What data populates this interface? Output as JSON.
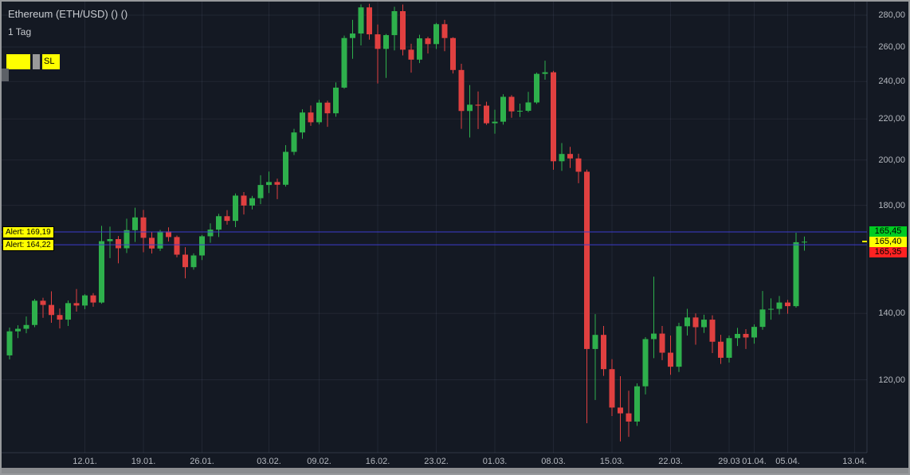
{
  "header": {
    "title": "Ethereum (ETH/USD) () ()",
    "interval": "1 Tag"
  },
  "legend": {
    "sl_label": "SL"
  },
  "alerts": [
    {
      "label": "Alert: 169,19",
      "price": 169.19
    },
    {
      "label": "Alert: 164,22",
      "price": 164.22
    }
  ],
  "alert_style": {
    "line_color": "#3c3ccc",
    "label_bg": "#ffff00",
    "label_fg": "#000000"
  },
  "price_badges": [
    {
      "name": "ask",
      "value": "165,45",
      "price": 165.45,
      "bg": "#00cc22",
      "fg": "#000000"
    },
    {
      "name": "last",
      "value": "165,40",
      "price": 165.4,
      "bg": "#ffff00",
      "fg": "#000000"
    },
    {
      "name": "bid",
      "value": "165,35",
      "price": 165.35,
      "bg": "#ff2222",
      "fg": "#000000"
    }
  ],
  "chart_data": {
    "type": "candlestick",
    "title": "Ethereum (ETH/USD)",
    "interval": "1 Tag",
    "scale": "logarithmic",
    "colors": {
      "up": "#2eb04c",
      "down": "#e04040",
      "grid": "rgba(120,135,160,0.13)",
      "axis_line": "rgba(120,135,160,0.28)",
      "background": "#141923"
    },
    "last_price": 165.4,
    "price_axis": {
      "side": "right",
      "ticks": [
        {
          "value": 280,
          "label": "280,00"
        },
        {
          "value": 260,
          "label": "260,00"
        },
        {
          "value": 240,
          "label": "240,00"
        },
        {
          "value": 220,
          "label": "220,00"
        },
        {
          "value": 200,
          "label": "200,00"
        },
        {
          "value": 180,
          "label": "180,00"
        },
        {
          "value": 140,
          "label": "140,00"
        },
        {
          "value": 120,
          "label": "120,00"
        }
      ]
    },
    "time_axis": {
      "ticks": [
        {
          "label": "12.01.",
          "candle_index": 9
        },
        {
          "label": "19.01.",
          "candle_index": 16
        },
        {
          "label": "26.01.",
          "candle_index": 23
        },
        {
          "label": "03.02.",
          "candle_index": 31
        },
        {
          "label": "09.02.",
          "candle_index": 37
        },
        {
          "label": "16.02.",
          "candle_index": 44
        },
        {
          "label": "23.02.",
          "candle_index": 51
        },
        {
          "label": "01.03.",
          "candle_index": 58
        },
        {
          "label": "08.03.",
          "candle_index": 65
        },
        {
          "label": "15.03.",
          "candle_index": 72
        },
        {
          "label": "22.03.",
          "candle_index": 79
        },
        {
          "label": "29.03",
          "candle_index": 86
        },
        {
          "label": "01.04.",
          "candle_index": 89
        },
        {
          "label": "05.04.",
          "candle_index": 93
        },
        {
          "label": "13.04.",
          "candle_index": 101
        }
      ]
    },
    "candle_format": [
      "date",
      "open",
      "high",
      "low",
      "close"
    ],
    "candles": [
      [
        "03.01",
        127.0,
        135.5,
        125.8,
        134.3
      ],
      [
        "04.01",
        134.3,
        136.2,
        132.2,
        135.1
      ],
      [
        "05.01",
        135.1,
        139.0,
        133.7,
        136.3
      ],
      [
        "06.01",
        136.3,
        144.8,
        135.6,
        144.2
      ],
      [
        "07.01",
        144.2,
        145.2,
        138.6,
        142.8
      ],
      [
        "08.01",
        142.8,
        147.4,
        137.0,
        139.5
      ],
      [
        "09.01",
        139.5,
        141.6,
        135.2,
        138.0
      ],
      [
        "10.01",
        138.0,
        144.3,
        136.0,
        143.4
      ],
      [
        "11.01",
        143.4,
        148.2,
        140.6,
        142.6
      ],
      [
        "12.01",
        142.6,
        146.4,
        141.4,
        146.0
      ],
      [
        "13.01",
        146.0,
        146.8,
        142.2,
        143.6
      ],
      [
        "14.01",
        143.6,
        171.6,
        143.2,
        165.6
      ],
      [
        "15.01",
        165.6,
        171.3,
        159.2,
        166.4
      ],
      [
        "16.01",
        166.4,
        167.6,
        157.3,
        162.9
      ],
      [
        "17.01",
        162.9,
        174.5,
        161.1,
        169.9
      ],
      [
        "18.01",
        169.9,
        179.0,
        165.3,
        175.0
      ],
      [
        "19.01",
        175.0,
        178.1,
        161.4,
        166.9
      ],
      [
        "20.01",
        166.9,
        169.3,
        160.9,
        162.8
      ],
      [
        "21.01",
        162.8,
        170.0,
        161.9,
        169.4
      ],
      [
        "22.01",
        169.4,
        171.0,
        165.5,
        167.2
      ],
      [
        "23.01",
        167.2,
        167.8,
        159.5,
        160.5
      ],
      [
        "24.01",
        160.5,
        163.3,
        151.9,
        155.9
      ],
      [
        "25.01",
        155.9,
        161.0,
        155.0,
        160.2
      ],
      [
        "26.01",
        160.2,
        168.0,
        158.5,
        167.5
      ],
      [
        "27.01",
        167.5,
        172.6,
        165.0,
        170.1
      ],
      [
        "28.01",
        170.1,
        176.5,
        167.2,
        175.5
      ],
      [
        "29.01",
        175.5,
        178.0,
        172.1,
        173.6
      ],
      [
        "30.01",
        173.6,
        185.0,
        171.1,
        184.1
      ],
      [
        "31.01",
        184.1,
        185.6,
        176.2,
        179.9
      ],
      [
        "01.02",
        179.9,
        184.0,
        178.3,
        183.0
      ],
      [
        "02.02",
        183.0,
        193.0,
        180.5,
        188.7
      ],
      [
        "03.02",
        188.7,
        194.7,
        185.2,
        190.0
      ],
      [
        "04.02",
        190.0,
        191.5,
        182.6,
        188.8
      ],
      [
        "05.02",
        188.8,
        207.0,
        188.0,
        203.8
      ],
      [
        "06.02",
        203.8,
        215.0,
        202.3,
        213.2
      ],
      [
        "07.02",
        213.2,
        225.0,
        210.1,
        223.3
      ],
      [
        "08.02",
        223.3,
        227.0,
        216.5,
        218.3
      ],
      [
        "09.02",
        218.3,
        230.0,
        217.2,
        228.5
      ],
      [
        "10.02",
        228.5,
        229.5,
        216.0,
        222.9
      ],
      [
        "11.02",
        222.9,
        239.5,
        221.1,
        236.6
      ],
      [
        "12.02",
        236.6,
        267.0,
        236.0,
        265.5
      ],
      [
        "13.02",
        265.5,
        277.0,
        253.0,
        268.3
      ],
      [
        "14.02",
        268.3,
        287.1,
        261.0,
        285.1
      ],
      [
        "15.02",
        285.1,
        287.5,
        264.5,
        267.8
      ],
      [
        "16.02",
        267.8,
        274.0,
        238.9,
        258.9
      ],
      [
        "17.02",
        258.9,
        268.0,
        242.0,
        267.3
      ],
      [
        "18.02",
        267.3,
        285.5,
        258.0,
        282.6
      ],
      [
        "19.02",
        282.6,
        287.0,
        255.0,
        258.4
      ],
      [
        "20.02",
        258.4,
        262.0,
        245.0,
        252.5
      ],
      [
        "21.02",
        252.5,
        267.5,
        250.5,
        265.3
      ],
      [
        "22.02",
        265.3,
        266.3,
        256.1,
        261.8
      ],
      [
        "23.02",
        261.8,
        275.0,
        258.8,
        274.2
      ],
      [
        "24.02",
        274.2,
        277.0,
        257.5,
        265.5
      ],
      [
        "25.02",
        265.5,
        266.0,
        244.5,
        246.5
      ],
      [
        "26.02",
        246.5,
        250.1,
        215.0,
        224.1
      ],
      [
        "27.02",
        224.1,
        238.0,
        210.7,
        227.4
      ],
      [
        "28.02",
        227.4,
        234.5,
        214.9,
        226.9
      ],
      [
        "29.02",
        226.9,
        229.0,
        217.0,
        217.8
      ],
      [
        "01.03",
        217.8,
        224.8,
        212.6,
        218.6
      ],
      [
        "02.03",
        218.6,
        233.0,
        217.1,
        231.6
      ],
      [
        "03.03",
        231.6,
        232.5,
        220.6,
        223.9
      ],
      [
        "04.03",
        223.9,
        228.0,
        221.0,
        224.2
      ],
      [
        "05.03",
        224.2,
        234.3,
        223.5,
        228.6
      ],
      [
        "06.03",
        228.6,
        245.0,
        227.8,
        244.3
      ],
      [
        "07.03",
        244.3,
        251.9,
        241.0,
        245.2
      ],
      [
        "08.03",
        245.2,
        246.0,
        195.5,
        199.4
      ],
      [
        "09.03",
        199.4,
        208.0,
        195.0,
        202.8
      ],
      [
        "10.03",
        202.8,
        206.2,
        196.3,
        200.7
      ],
      [
        "11.03",
        200.7,
        202.9,
        189.5,
        194.6
      ],
      [
        "12.03",
        194.6,
        195.6,
        108.5,
        128.9
      ],
      [
        "13.03",
        128.9,
        139.8,
        114.5,
        133.2
      ],
      [
        "14.03",
        133.2,
        136.0,
        121.1,
        123.0
      ],
      [
        "15.03",
        123.0,
        125.9,
        110.3,
        112.5
      ],
      [
        "16.03",
        112.5,
        121.0,
        104.0,
        111.0
      ],
      [
        "17.03",
        111.0,
        117.0,
        105.1,
        108.9
      ],
      [
        "18.03",
        108.9,
        119.0,
        107.8,
        118.2
      ],
      [
        "19.03",
        118.2,
        132.5,
        116.0,
        131.9
      ],
      [
        "20.03",
        131.9,
        152.5,
        126.2,
        133.6
      ],
      [
        "21.03",
        133.6,
        136.0,
        125.6,
        127.8
      ],
      [
        "22.03",
        127.8,
        133.0,
        121.4,
        123.7
      ],
      [
        "23.03",
        123.7,
        137.0,
        122.2,
        135.9
      ],
      [
        "24.03",
        135.9,
        141.5,
        133.0,
        138.7
      ],
      [
        "25.03",
        138.7,
        140.0,
        130.2,
        135.6
      ],
      [
        "26.03",
        135.6,
        139.6,
        133.8,
        138.0
      ],
      [
        "27.03",
        138.0,
        139.4,
        127.7,
        131.1
      ],
      [
        "28.03",
        131.1,
        133.2,
        124.5,
        126.3
      ],
      [
        "29.03",
        126.3,
        133.0,
        124.9,
        132.2
      ],
      [
        "30.03",
        132.2,
        135.4,
        129.8,
        133.5
      ],
      [
        "31.03",
        133.5,
        135.0,
        128.9,
        132.4
      ],
      [
        "01.04",
        132.4,
        136.5,
        130.5,
        135.7
      ],
      [
        "02.04",
        135.7,
        147.5,
        134.8,
        141.3
      ],
      [
        "03.04",
        141.3,
        145.0,
        138.0,
        141.5
      ],
      [
        "04.04",
        141.5,
        145.8,
        139.7,
        143.6
      ],
      [
        "05.04",
        143.6,
        144.5,
        139.9,
        142.4
      ],
      [
        "06.04",
        142.4,
        168.9,
        141.9,
        165.2
      ],
      [
        "07.04",
        165.2,
        167.4,
        162.0,
        165.4
      ]
    ]
  }
}
